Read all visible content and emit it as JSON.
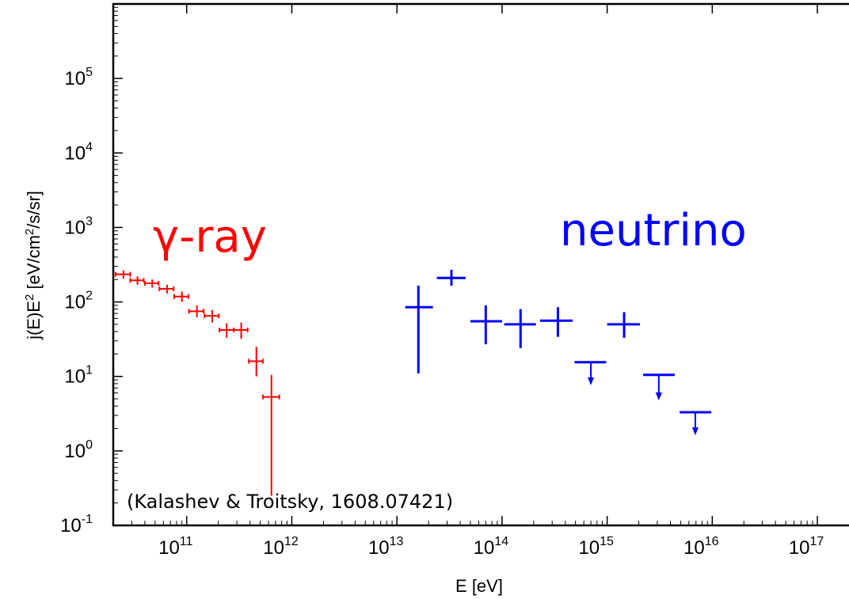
{
  "chart_data": {
    "type": "scatter",
    "scale": {
      "x": "log",
      "y": "log"
    },
    "xlim": [
      20000000000.0,
      2e+17
    ],
    "ylim": [
      0.1,
      1000000.0
    ],
    "xlabel": "E [eV]",
    "ylabel": {
      "pre": "j(E)E",
      "sup1": "2",
      "mid": " [eV/cm",
      "sup2": "2",
      "post": "/s/sr]"
    },
    "x_ticks": [
      {
        "base": "10",
        "exp": "11",
        "value": 100000000000.0
      },
      {
        "base": "10",
        "exp": "12",
        "value": 1000000000000.0
      },
      {
        "base": "10",
        "exp": "13",
        "value": 10000000000000.0
      },
      {
        "base": "10",
        "exp": "14",
        "value": 100000000000000.0
      },
      {
        "base": "10",
        "exp": "15",
        "value": 1000000000000000.0
      },
      {
        "base": "10",
        "exp": "16",
        "value": 1e+16
      },
      {
        "base": "10",
        "exp": "17",
        "value": 1e+17
      }
    ],
    "y_ticks": [
      {
        "base": "10",
        "exp": "-1",
        "value": 0.1
      },
      {
        "base": "10",
        "exp": "0",
        "value": 1
      },
      {
        "base": "10",
        "exp": "1",
        "value": 10
      },
      {
        "base": "10",
        "exp": "2",
        "value": 100
      },
      {
        "base": "10",
        "exp": "3",
        "value": 1000
      },
      {
        "base": "10",
        "exp": "4",
        "value": 10000
      },
      {
        "base": "10",
        "exp": "5",
        "value": 100000
      }
    ],
    "series": [
      {
        "label": "γ-ray",
        "color": "#ff0000",
        "points": [
          {
            "x": 25000000000.0,
            "y": 235,
            "xlo": 21000000000.0,
            "xhi": 29000000000.0,
            "ylo": 205,
            "yhi": 265
          },
          {
            "x": 34000000000.0,
            "y": 195,
            "xlo": 29000000000.0,
            "xhi": 39000000000.0,
            "ylo": 170,
            "yhi": 220
          },
          {
            "x": 47000000000.0,
            "y": 178,
            "xlo": 40000000000.0,
            "xhi": 54000000000.0,
            "ylo": 156,
            "yhi": 200
          },
          {
            "x": 65000000000.0,
            "y": 150,
            "xlo": 55000000000.0,
            "xhi": 75000000000.0,
            "ylo": 130,
            "yhi": 170
          },
          {
            "x": 90000000000.0,
            "y": 118,
            "xlo": 76000000000.0,
            "xhi": 104000000000.0,
            "ylo": 100,
            "yhi": 138
          },
          {
            "x": 125000000000.0,
            "y": 75,
            "xlo": 105000000000.0,
            "xhi": 145000000000.0,
            "ylo": 62,
            "yhi": 90
          },
          {
            "x": 175000000000.0,
            "y": 65,
            "xlo": 148000000000.0,
            "xhi": 202000000000.0,
            "ylo": 53,
            "yhi": 78
          },
          {
            "x": 240000000000.0,
            "y": 42,
            "xlo": 205000000000.0,
            "xhi": 280000000000.0,
            "ylo": 33,
            "yhi": 52
          },
          {
            "x": 330000000000.0,
            "y": 42,
            "xlo": 280000000000.0,
            "xhi": 380000000000.0,
            "ylo": 32,
            "yhi": 53
          },
          {
            "x": 460000000000.0,
            "y": 16,
            "xlo": 390000000000.0,
            "xhi": 530000000000.0,
            "ylo": 10,
            "yhi": 25
          },
          {
            "x": 640000000000.0,
            "y": 5.3,
            "xlo": 530000000000.0,
            "xhi": 760000000000.0,
            "ylo": 0.25,
            "yhi": 10.5
          }
        ]
      },
      {
        "label": "neutrino",
        "color": "#0000ff",
        "points": [
          {
            "x": 16000000000000.0,
            "y": 85,
            "xlo": 12000000000000.0,
            "xhi": 22000000000000.0,
            "ylo": 11,
            "yhi": 165
          },
          {
            "x": 33000000000000.0,
            "y": 210,
            "xlo": 24000000000000.0,
            "xhi": 45000000000000.0,
            "ylo": 165,
            "yhi": 270
          },
          {
            "x": 70000000000000.0,
            "y": 55,
            "xlo": 50000000000000.0,
            "xhi": 100000000000000.0,
            "ylo": 27,
            "yhi": 90
          },
          {
            "x": 150000000000000.0,
            "y": 50,
            "xlo": 105000000000000.0,
            "xhi": 210000000000000.0,
            "ylo": 24,
            "yhi": 80
          },
          {
            "x": 340000000000000.0,
            "y": 56,
            "xlo": 230000000000000.0,
            "xhi": 470000000000000.0,
            "ylo": 34,
            "yhi": 85
          },
          {
            "x": 1450000000000000.0,
            "y": 50,
            "xlo": 1000000000000000.0,
            "xhi": 2050000000000000.0,
            "ylo": 33,
            "yhi": 73
          }
        ],
        "upper_limits": [
          {
            "x": 700000000000000.0,
            "y": 15.5,
            "xlo": 490000000000000.0,
            "xhi": 980000000000000.0,
            "arrow_to": 8.0
          },
          {
            "x": 3100000000000000.0,
            "y": 10.5,
            "xlo": 2200000000000000.0,
            "xhi": 4400000000000000.0,
            "arrow_to": 5.0
          },
          {
            "x": 6900000000000000.0,
            "y": 3.3,
            "xlo": 4900000000000000.0,
            "xhi": 9800000000000000.0,
            "arrow_to": 1.7
          }
        ]
      }
    ],
    "labels": [
      {
        "text": "γ-ray",
        "color": "#ff0000"
      },
      {
        "text": "neutrino",
        "color": "#0000ff"
      }
    ],
    "annotation": "(Kalashev & Troitsky, 1608.07421)"
  }
}
